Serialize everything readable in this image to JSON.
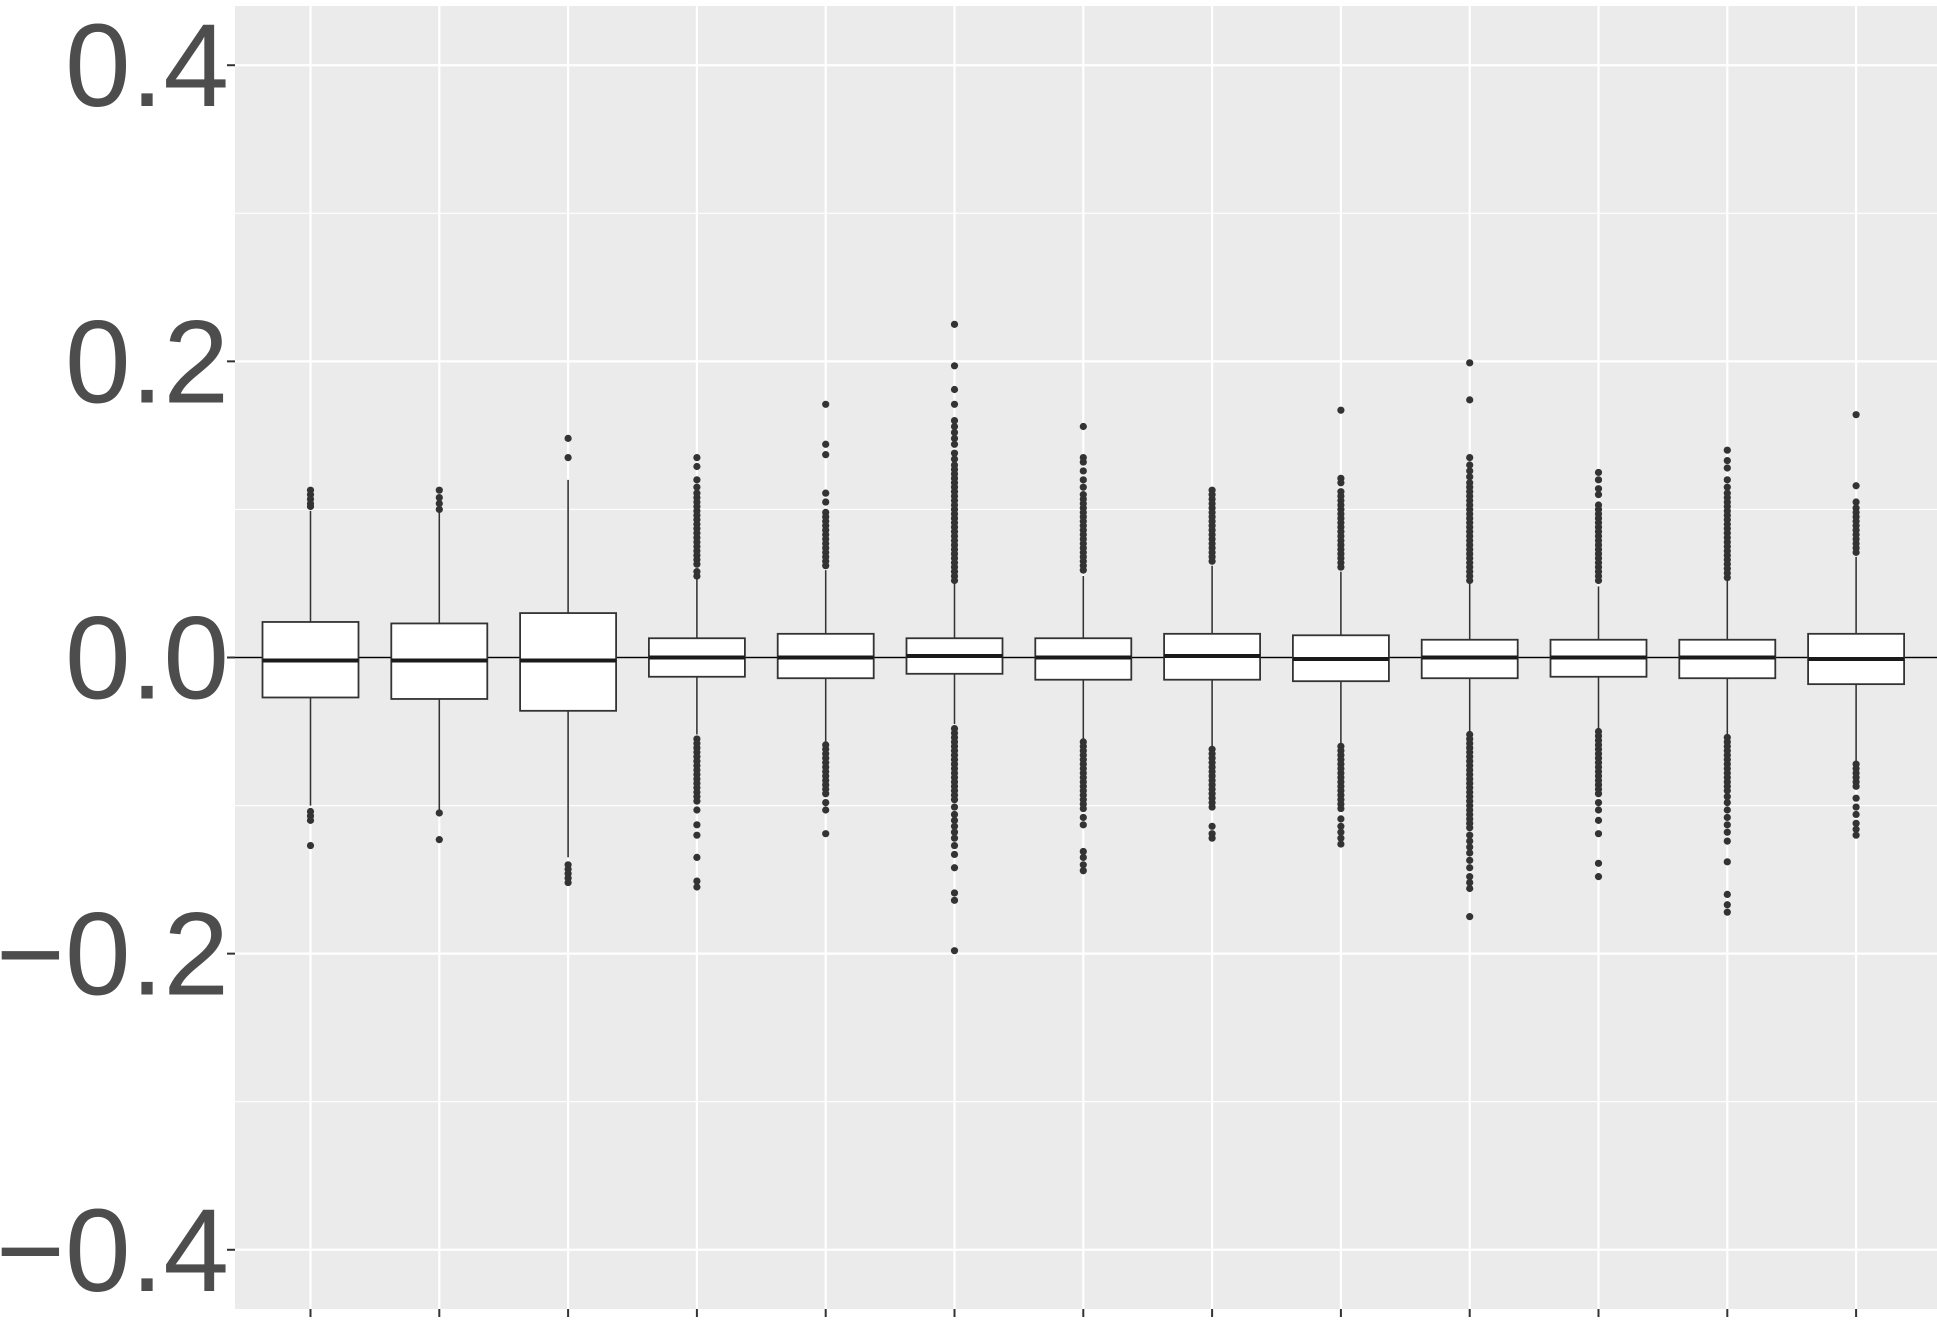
{
  "chart_data": {
    "type": "boxplot",
    "title": "",
    "xlabel": "",
    "ylabel": "",
    "ylim": [
      -0.44,
      0.44
    ],
    "y_ticks": [
      0.4,
      0.2,
      0.0,
      -0.2,
      -0.4
    ],
    "y_tick_labels": [
      "0.4",
      "0.2",
      "0.0",
      "−0.2",
      "−0.4"
    ],
    "grid": true,
    "reference_line": 0,
    "legend": "none",
    "colors": {
      "panel_background": "#ebebeb",
      "grid": "#ffffff",
      "box_fill": "#ffffff",
      "box_stroke": "#333333",
      "outlier": "#333333",
      "tick_label": "#4d4d4d",
      "reference_line": "#000000"
    },
    "boxes": [
      {
        "index": 1,
        "whisker_low": -0.1,
        "q1": -0.027,
        "median": -0.002,
        "q3": 0.024,
        "whisker_high": 0.099,
        "outliers": [
          0.113,
          0.11,
          0.107,
          0.104,
          0.102,
          -0.104,
          -0.107,
          -0.11,
          -0.127
        ]
      },
      {
        "index": 2,
        "whisker_low": -0.105,
        "q1": -0.028,
        "median": -0.002,
        "q3": 0.023,
        "whisker_high": 0.099,
        "outliers": [
          0.113,
          0.108,
          0.104,
          0.1,
          -0.105,
          -0.123
        ]
      },
      {
        "index": 3,
        "whisker_low": -0.135,
        "q1": -0.036,
        "median": -0.002,
        "q3": 0.03,
        "whisker_high": 0.12,
        "outliers": [
          0.148,
          0.135,
          -0.14,
          -0.143,
          -0.146,
          -0.149,
          -0.152
        ]
      },
      {
        "index": 4,
        "whisker_low": -0.052,
        "q1": -0.013,
        "median": 0.0,
        "q3": 0.013,
        "whisker_high": 0.053,
        "outliers": [
          0.135,
          0.129,
          0.12,
          0.115,
          0.111,
          0.108,
          0.105,
          0.102,
          0.099,
          0.096,
          0.093,
          0.09,
          0.087,
          0.084,
          0.081,
          0.078,
          0.075,
          0.072,
          0.069,
          0.066,
          0.063,
          0.058,
          0.055,
          -0.055,
          -0.058,
          -0.061,
          -0.064,
          -0.067,
          -0.07,
          -0.073,
          -0.076,
          -0.079,
          -0.082,
          -0.085,
          -0.088,
          -0.091,
          -0.094,
          -0.097,
          -0.103,
          -0.113,
          -0.12,
          -0.135,
          -0.151,
          -0.155
        ]
      },
      {
        "index": 5,
        "whisker_low": -0.057,
        "q1": -0.014,
        "median": 0.0,
        "q3": 0.016,
        "whisker_high": 0.059,
        "outliers": [
          0.171,
          0.144,
          0.137,
          0.111,
          0.105,
          0.098,
          0.095,
          0.092,
          0.089,
          0.086,
          0.083,
          0.08,
          0.077,
          0.074,
          0.071,
          0.068,
          0.065,
          0.062,
          -0.059,
          -0.062,
          -0.065,
          -0.068,
          -0.071,
          -0.074,
          -0.077,
          -0.08,
          -0.083,
          -0.086,
          -0.089,
          -0.092,
          -0.098,
          -0.103,
          -0.119
        ]
      },
      {
        "index": 6,
        "whisker_low": -0.045,
        "q1": -0.011,
        "median": 0.001,
        "q3": 0.013,
        "whisker_high": 0.05,
        "outliers": [
          0.225,
          0.197,
          0.181,
          0.171,
          0.16,
          0.156,
          0.152,
          0.148,
          0.144,
          0.138,
          0.134,
          0.13,
          0.127,
          0.124,
          0.121,
          0.118,
          0.115,
          0.112,
          0.109,
          0.106,
          0.103,
          0.1,
          0.097,
          0.094,
          0.091,
          0.088,
          0.085,
          0.082,
          0.079,
          0.076,
          0.073,
          0.07,
          0.067,
          0.064,
          0.061,
          0.058,
          0.055,
          0.052,
          -0.048,
          -0.051,
          -0.054,
          -0.057,
          -0.06,
          -0.063,
          -0.066,
          -0.069,
          -0.072,
          -0.075,
          -0.078,
          -0.081,
          -0.084,
          -0.087,
          -0.09,
          -0.093,
          -0.096,
          -0.101,
          -0.106,
          -0.11,
          -0.114,
          -0.118,
          -0.122,
          -0.127,
          -0.133,
          -0.142,
          -0.159,
          -0.164,
          -0.198
        ]
      },
      {
        "index": 7,
        "whisker_low": -0.055,
        "q1": -0.015,
        "median": 0.0,
        "q3": 0.013,
        "whisker_high": 0.055,
        "outliers": [
          0.156,
          0.135,
          0.132,
          0.126,
          0.12,
          0.115,
          0.11,
          0.107,
          0.104,
          0.101,
          0.098,
          0.095,
          0.092,
          0.089,
          0.086,
          0.083,
          0.08,
          0.077,
          0.074,
          0.071,
          0.068,
          0.065,
          0.062,
          0.059,
          -0.057,
          -0.06,
          -0.063,
          -0.066,
          -0.069,
          -0.072,
          -0.075,
          -0.078,
          -0.081,
          -0.084,
          -0.087,
          -0.09,
          -0.093,
          -0.096,
          -0.099,
          -0.102,
          -0.108,
          -0.113,
          -0.131,
          -0.135,
          -0.14,
          -0.144
        ]
      },
      {
        "index": 8,
        "whisker_low": -0.06,
        "q1": -0.015,
        "median": 0.001,
        "q3": 0.016,
        "whisker_high": 0.062,
        "outliers": [
          0.113,
          0.11,
          0.107,
          0.104,
          0.101,
          0.098,
          0.095,
          0.092,
          0.089,
          0.086,
          0.083,
          0.08,
          0.077,
          0.074,
          0.071,
          0.068,
          0.065,
          -0.062,
          -0.065,
          -0.068,
          -0.071,
          -0.074,
          -0.077,
          -0.08,
          -0.083,
          -0.086,
          -0.089,
          -0.092,
          -0.095,
          -0.098,
          -0.101,
          -0.114,
          -0.119,
          -0.122
        ]
      },
      {
        "index": 9,
        "whisker_low": -0.058,
        "q1": -0.016,
        "median": -0.001,
        "q3": 0.015,
        "whisker_high": 0.058,
        "outliers": [
          0.167,
          0.121,
          0.118,
          0.112,
          0.109,
          0.106,
          0.103,
          0.1,
          0.097,
          0.094,
          0.091,
          0.088,
          0.085,
          0.082,
          0.079,
          0.076,
          0.073,
          0.07,
          0.067,
          0.064,
          0.061,
          -0.06,
          -0.063,
          -0.066,
          -0.069,
          -0.072,
          -0.075,
          -0.078,
          -0.081,
          -0.084,
          -0.087,
          -0.09,
          -0.093,
          -0.096,
          -0.099,
          -0.102,
          -0.109,
          -0.114,
          -0.118,
          -0.122,
          -0.126
        ]
      },
      {
        "index": 10,
        "whisker_low": -0.05,
        "q1": -0.014,
        "median": 0.0,
        "q3": 0.012,
        "whisker_high": 0.05,
        "outliers": [
          0.199,
          0.174,
          0.135,
          0.13,
          0.126,
          0.122,
          0.118,
          0.115,
          0.112,
          0.109,
          0.106,
          0.103,
          0.1,
          0.097,
          0.094,
          0.091,
          0.088,
          0.085,
          0.082,
          0.079,
          0.076,
          0.073,
          0.07,
          0.067,
          0.064,
          0.061,
          0.058,
          0.055,
          0.052,
          -0.052,
          -0.055,
          -0.058,
          -0.061,
          -0.064,
          -0.067,
          -0.07,
          -0.073,
          -0.076,
          -0.079,
          -0.082,
          -0.085,
          -0.088,
          -0.091,
          -0.094,
          -0.097,
          -0.1,
          -0.103,
          -0.106,
          -0.109,
          -0.112,
          -0.115,
          -0.12,
          -0.124,
          -0.128,
          -0.132,
          -0.137,
          -0.142,
          -0.148,
          -0.152,
          -0.156,
          -0.175
        ]
      },
      {
        "index": 11,
        "whisker_low": -0.048,
        "q1": -0.013,
        "median": 0.0,
        "q3": 0.012,
        "whisker_high": 0.048,
        "outliers": [
          0.125,
          0.12,
          0.114,
          0.11,
          0.103,
          0.1,
          0.097,
          0.094,
          0.091,
          0.088,
          0.085,
          0.082,
          0.079,
          0.076,
          0.073,
          0.07,
          0.067,
          0.064,
          0.061,
          0.058,
          0.055,
          0.052,
          -0.05,
          -0.053,
          -0.056,
          -0.059,
          -0.062,
          -0.065,
          -0.068,
          -0.071,
          -0.074,
          -0.077,
          -0.08,
          -0.083,
          -0.086,
          -0.089,
          -0.092,
          -0.098,
          -0.103,
          -0.11,
          -0.119,
          -0.139,
          -0.148
        ]
      },
      {
        "index": 12,
        "whisker_low": -0.052,
        "q1": -0.014,
        "median": 0.0,
        "q3": 0.012,
        "whisker_high": 0.052,
        "outliers": [
          0.14,
          0.133,
          0.128,
          0.12,
          0.115,
          0.111,
          0.108,
          0.105,
          0.102,
          0.099,
          0.096,
          0.093,
          0.09,
          0.087,
          0.084,
          0.081,
          0.078,
          0.075,
          0.072,
          0.069,
          0.066,
          0.063,
          0.06,
          0.057,
          0.054,
          -0.054,
          -0.057,
          -0.06,
          -0.063,
          -0.066,
          -0.069,
          -0.072,
          -0.075,
          -0.078,
          -0.081,
          -0.084,
          -0.087,
          -0.09,
          -0.094,
          -0.098,
          -0.103,
          -0.108,
          -0.113,
          -0.118,
          -0.124,
          -0.138,
          -0.16,
          -0.167,
          -0.172
        ]
      },
      {
        "index": 13,
        "whisker_low": -0.07,
        "q1": -0.018,
        "median": -0.001,
        "q3": 0.016,
        "whisker_high": 0.068,
        "outliers": [
          0.164,
          0.116,
          0.105,
          0.101,
          0.098,
          0.095,
          0.092,
          0.089,
          0.086,
          0.083,
          0.08,
          0.077,
          0.074,
          0.071,
          -0.072,
          -0.075,
          -0.078,
          -0.081,
          -0.084,
          -0.087,
          -0.095,
          -0.101,
          -0.106,
          -0.112,
          -0.116,
          -0.12
        ]
      }
    ]
  }
}
